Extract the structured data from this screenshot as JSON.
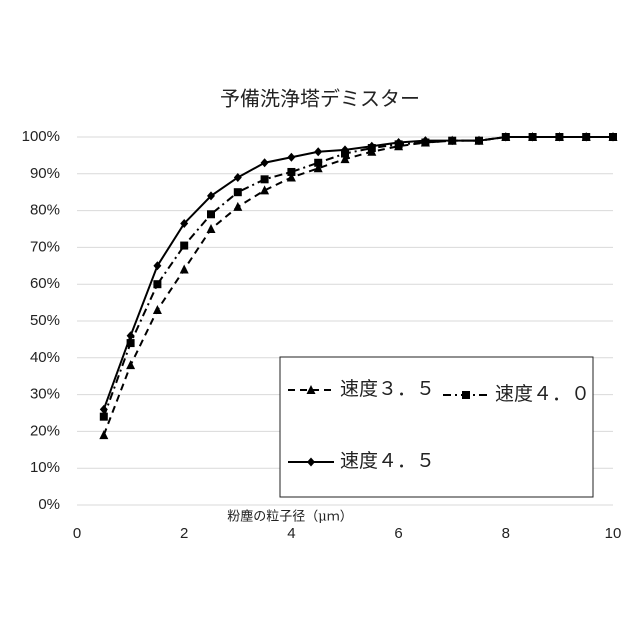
{
  "chart_data": {
    "type": "line",
    "title": "予備洗浄塔デミスター",
    "x_label": "粉塵の粒子径（μｍ）",
    "x": [
      0.5,
      1,
      1.5,
      2,
      2.5,
      3,
      3.5,
      4,
      4.5,
      5,
      5.5,
      6,
      6.5,
      7,
      7.5,
      8,
      8.5,
      9,
      9.5,
      10
    ],
    "series": [
      {
        "name": "速度３．５",
        "color": "#000000",
        "style": "dashed",
        "marker": "triangle",
        "values": [
          19,
          38,
          53,
          64,
          75,
          81,
          85.5,
          89,
          91.5,
          94,
          96,
          97.5,
          98.5,
          99,
          99,
          100,
          100,
          100,
          100,
          100
        ]
      },
      {
        "name": "速度４．０",
        "color": "#000000",
        "style": "dashdot",
        "marker": "square",
        "values": [
          24,
          44,
          60,
          70.5,
          79,
          85,
          88.5,
          90.5,
          93,
          95.5,
          97,
          98,
          98.5,
          99,
          99,
          100,
          100,
          100,
          100,
          100
        ]
      },
      {
        "name": "速度４．５",
        "color": "#000000",
        "style": "solid",
        "marker": "diamond",
        "values": [
          26,
          46,
          65,
          76.5,
          84,
          89,
          93,
          94.5,
          96,
          96.5,
          97.5,
          98.5,
          99,
          99,
          99,
          100,
          100,
          100,
          100,
          100
        ]
      }
    ],
    "xlim": [
      0,
      10
    ],
    "xticks": [
      0,
      2,
      4,
      6,
      8,
      10
    ],
    "ylim": [
      0,
      100
    ],
    "yticks": [
      {
        "value": 0,
        "label": "0%"
      },
      {
        "value": 10,
        "label": "10%"
      },
      {
        "value": 20,
        "label": "20%"
      },
      {
        "value": 30,
        "label": "30%"
      },
      {
        "value": 40,
        "label": "40%"
      },
      {
        "value": 50,
        "label": "50%"
      },
      {
        "value": 60,
        "label": "60%"
      },
      {
        "value": 70,
        "label": "70%"
      },
      {
        "value": 80,
        "label": "80%"
      },
      {
        "value": 90,
        "label": "90%"
      },
      {
        "value": 100,
        "label": "100%"
      }
    ],
    "grid": true
  }
}
